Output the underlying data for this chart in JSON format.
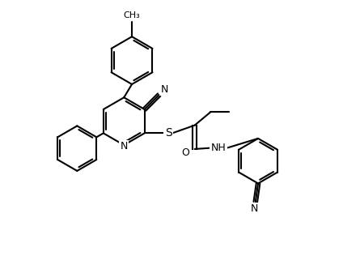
{
  "bg_color": "#ffffff",
  "line_color": "#000000",
  "line_width": 1.5,
  "font_size": 9,
  "fig_width": 4.24,
  "fig_height": 3.32,
  "dpi": 100,
  "xlim": [
    0,
    12
  ],
  "ylim": [
    0,
    10
  ]
}
